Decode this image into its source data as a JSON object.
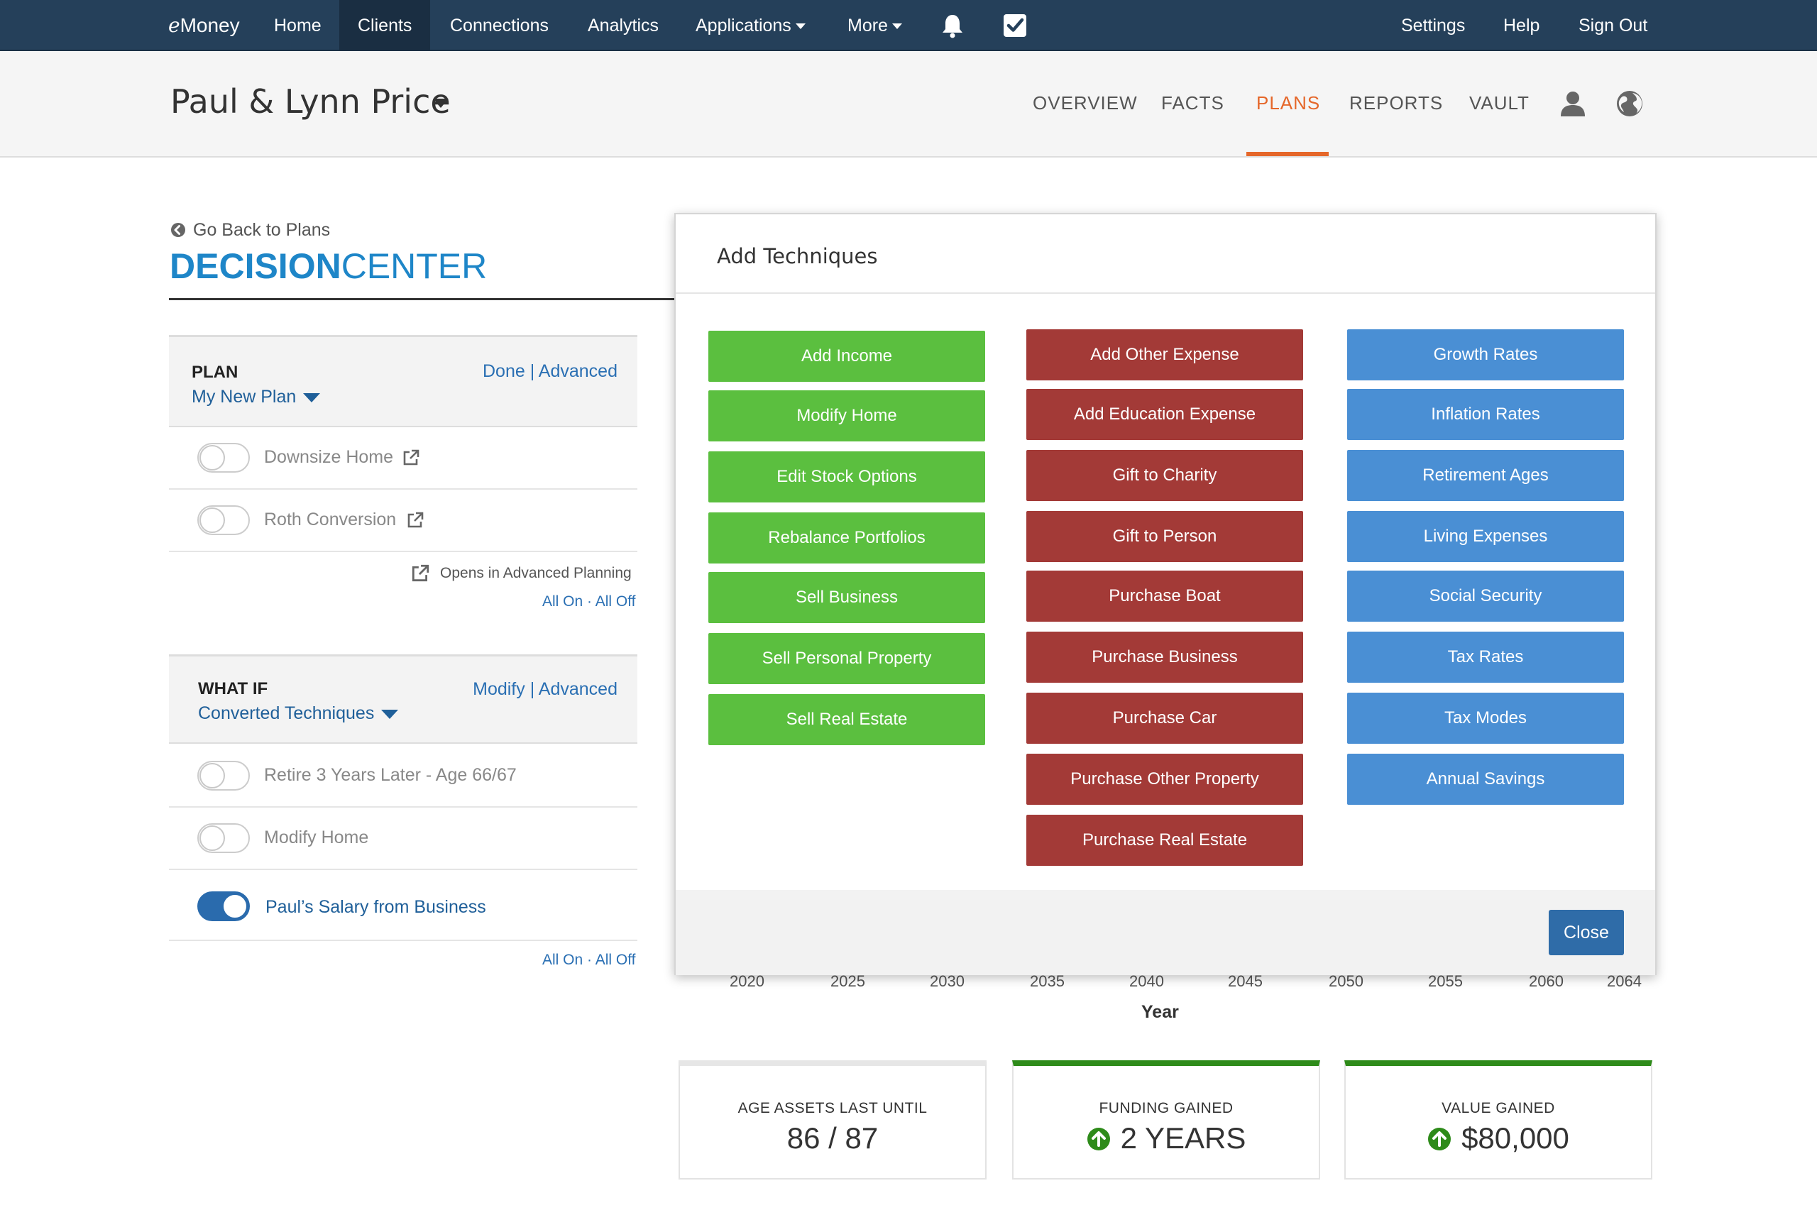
{
  "topnav": {
    "logo_prefix": "e",
    "logo_rest": "Money",
    "items": [
      {
        "label": "Home"
      },
      {
        "label": "Clients"
      },
      {
        "label": "Connections"
      },
      {
        "label": "Analytics"
      },
      {
        "label": "Applications"
      },
      {
        "label": "More"
      }
    ],
    "right": [
      {
        "label": "Settings"
      },
      {
        "label": "Help"
      },
      {
        "label": "Sign Out"
      }
    ],
    "icons": [
      "bell-icon",
      "checkbox-icon"
    ]
  },
  "client": {
    "name": "Paul & Lynn Price",
    "tabs": [
      {
        "label": "OVERVIEW"
      },
      {
        "label": "FACTS"
      },
      {
        "label": "PLANS"
      },
      {
        "label": "REPORTS"
      },
      {
        "label": "VAULT"
      }
    ],
    "active_tab": "PLANS",
    "icons": [
      "user-icon",
      "globe-icon"
    ]
  },
  "left": {
    "go_back": "Go Back to Plans",
    "title_bold": "DECISION",
    "title_light": "CENTER",
    "plan": {
      "label": "PLAN",
      "link_done": "Done",
      "link_sep": "|",
      "link_advanced": "Advanced",
      "selected": "My New Plan",
      "items": [
        {
          "label": "Downsize Home",
          "on": false
        },
        {
          "label": "Roth Conversion",
          "on": false
        }
      ],
      "note": "Opens in Advanced Planning",
      "all_on": "All On",
      "all_sep": "·",
      "all_off": "All Off"
    },
    "whatif": {
      "label": "WHAT IF",
      "link_modify": "Modify",
      "link_sep": "|",
      "link_advanced": "Advanced",
      "selected": "Converted Techniques",
      "items": [
        {
          "label": "Retire 3 Years Later - Age 66/67",
          "on": false
        },
        {
          "label": "Modify Home",
          "on": false
        },
        {
          "label": "Paul’s Salary from Business",
          "on": true
        }
      ],
      "all_on": "All On",
      "all_sep": "·",
      "all_off": "All Off"
    }
  },
  "chart": {
    "x_ticks": [
      "2020",
      "2025",
      "2030",
      "2035",
      "2040",
      "2045",
      "2050",
      "2055",
      "2060",
      "2064"
    ],
    "xlabel": "Year"
  },
  "stats": [
    {
      "label": "AGE ASSETS LAST UNTIL",
      "value": "86 / 87"
    },
    {
      "label": "FUNDING GAINED",
      "value": "2 YEARS"
    },
    {
      "label": "VALUE GAINED",
      "value": "$80,000"
    }
  ],
  "colors": {
    "nav_bg": "#25405a",
    "accent_orange": "#e5672a",
    "brand_blue": "#1e86c8",
    "green_btn": "#5bbf3f",
    "red_btn": "#a33a37",
    "blue_btn": "#4a8fd4",
    "up_green": "#2e8b1a"
  },
  "modal": {
    "title": "Add Techniques",
    "green": [
      {
        "label": "Add Income"
      },
      {
        "label": "Modify Home"
      },
      {
        "label": "Edit Stock Options"
      },
      {
        "label": "Rebalance Portfolios"
      },
      {
        "label": "Sell Business"
      },
      {
        "label": "Sell Personal Property"
      },
      {
        "label": "Sell Real Estate"
      }
    ],
    "red": [
      {
        "label": "Add Other Expense"
      },
      {
        "label": "Add Education Expense"
      },
      {
        "label": "Gift to Charity"
      },
      {
        "label": "Gift to Person"
      },
      {
        "label": "Purchase Boat"
      },
      {
        "label": "Purchase Business"
      },
      {
        "label": "Purchase Car"
      },
      {
        "label": "Purchase Other Property"
      },
      {
        "label": "Purchase Real Estate"
      }
    ],
    "blue": [
      {
        "label": "Growth Rates"
      },
      {
        "label": "Inflation Rates"
      },
      {
        "label": "Retirement Ages"
      },
      {
        "label": "Living Expenses"
      },
      {
        "label": "Social Security"
      },
      {
        "label": "Tax Rates"
      },
      {
        "label": "Tax Modes"
      },
      {
        "label": "Annual Savings"
      }
    ],
    "close_label": "Close"
  }
}
